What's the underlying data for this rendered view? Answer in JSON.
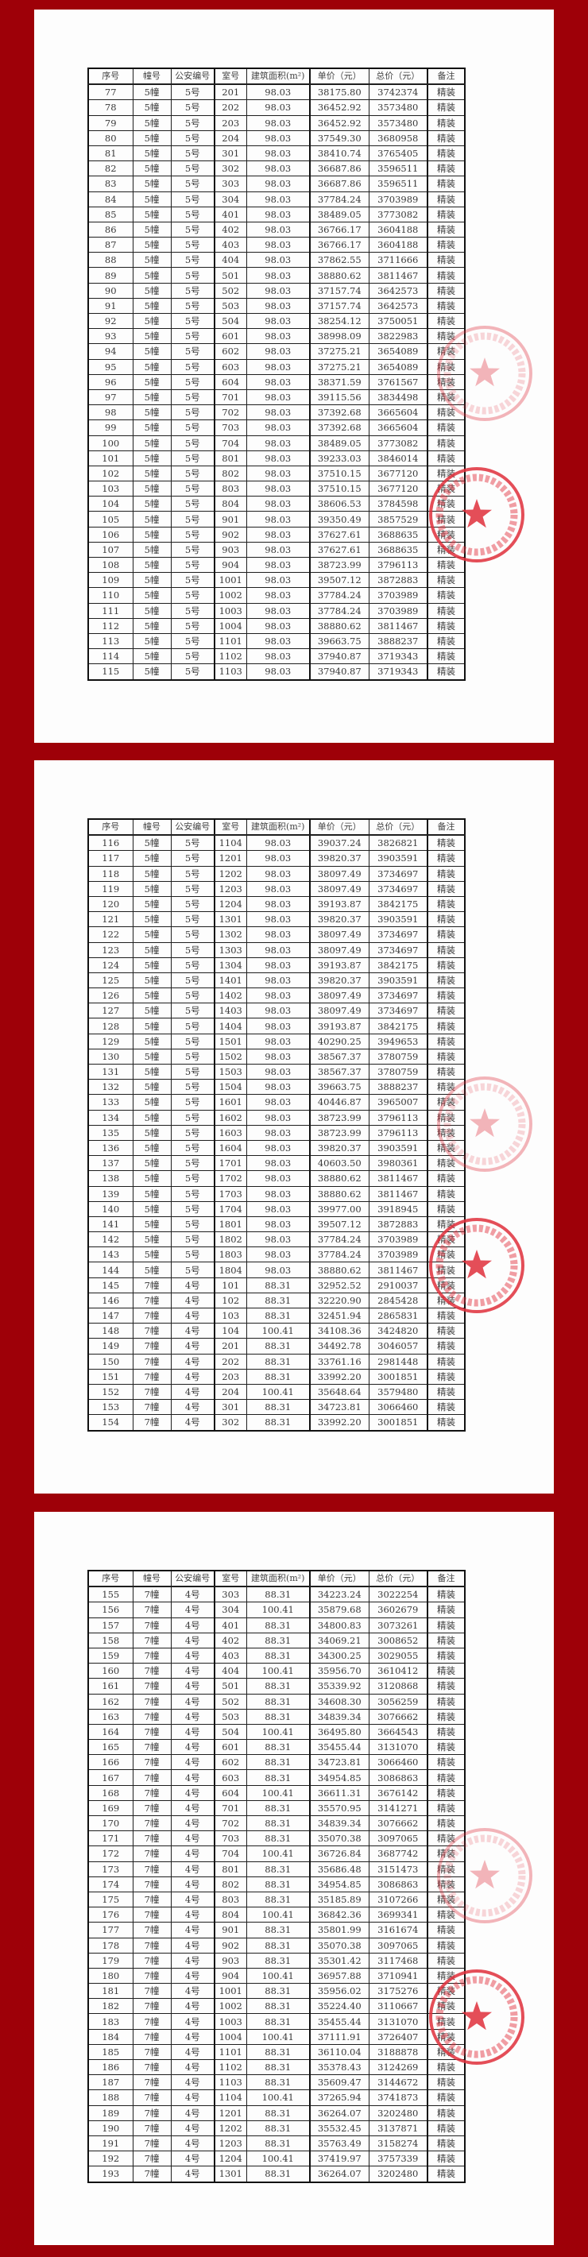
{
  "colors": {
    "background": "#9e0008",
    "paper": "#fdfdfd",
    "seal": "#e0303c"
  },
  "headers": [
    "序号",
    "幢号",
    "公安编号",
    "室号",
    "建筑面积(m²)",
    "单价（元）",
    "总价（元）",
    "备注"
  ],
  "pages": [
    {
      "rows": [
        [
          "77",
          "5幢",
          "5号",
          "201",
          "98.03",
          "38175.80",
          "3742374",
          "精装"
        ],
        [
          "78",
          "5幢",
          "5号",
          "202",
          "98.03",
          "36452.92",
          "3573480",
          "精装"
        ],
        [
          "79",
          "5幢",
          "5号",
          "203",
          "98.03",
          "36452.92",
          "3573480",
          "精装"
        ],
        [
          "80",
          "5幢",
          "5号",
          "204",
          "98.03",
          "37549.30",
          "3680958",
          "精装"
        ],
        [
          "81",
          "5幢",
          "5号",
          "301",
          "98.03",
          "38410.74",
          "3765405",
          "精装"
        ],
        [
          "82",
          "5幢",
          "5号",
          "302",
          "98.03",
          "36687.86",
          "3596511",
          "精装"
        ],
        [
          "83",
          "5幢",
          "5号",
          "303",
          "98.03",
          "36687.86",
          "3596511",
          "精装"
        ],
        [
          "84",
          "5幢",
          "5号",
          "304",
          "98.03",
          "37784.24",
          "3703989",
          "精装"
        ],
        [
          "85",
          "5幢",
          "5号",
          "401",
          "98.03",
          "38489.05",
          "3773082",
          "精装"
        ],
        [
          "86",
          "5幢",
          "5号",
          "402",
          "98.03",
          "36766.17",
          "3604188",
          "精装"
        ],
        [
          "87",
          "5幢",
          "5号",
          "403",
          "98.03",
          "36766.17",
          "3604188",
          "精装"
        ],
        [
          "88",
          "5幢",
          "5号",
          "404",
          "98.03",
          "37862.55",
          "3711666",
          "精装"
        ],
        [
          "89",
          "5幢",
          "5号",
          "501",
          "98.03",
          "38880.62",
          "3811467",
          "精装"
        ],
        [
          "90",
          "5幢",
          "5号",
          "502",
          "98.03",
          "37157.74",
          "3642573",
          "精装"
        ],
        [
          "91",
          "5幢",
          "5号",
          "503",
          "98.03",
          "37157.74",
          "3642573",
          "精装"
        ],
        [
          "92",
          "5幢",
          "5号",
          "504",
          "98.03",
          "38254.12",
          "3750051",
          "精装"
        ],
        [
          "93",
          "5幢",
          "5号",
          "601",
          "98.03",
          "38998.09",
          "3822983",
          "精装"
        ],
        [
          "94",
          "5幢",
          "5号",
          "602",
          "98.03",
          "37275.21",
          "3654089",
          "精装"
        ],
        [
          "95",
          "5幢",
          "5号",
          "603",
          "98.03",
          "37275.21",
          "3654089",
          "精装"
        ],
        [
          "96",
          "5幢",
          "5号",
          "604",
          "98.03",
          "38371.59",
          "3761567",
          "精装"
        ],
        [
          "97",
          "5幢",
          "5号",
          "701",
          "98.03",
          "39115.56",
          "3834498",
          "精装"
        ],
        [
          "98",
          "5幢",
          "5号",
          "702",
          "98.03",
          "37392.68",
          "3665604",
          "精装"
        ],
        [
          "99",
          "5幢",
          "5号",
          "703",
          "98.03",
          "37392.68",
          "3665604",
          "精装"
        ],
        [
          "100",
          "5幢",
          "5号",
          "704",
          "98.03",
          "38489.05",
          "3773082",
          "精装"
        ],
        [
          "101",
          "5幢",
          "5号",
          "801",
          "98.03",
          "39233.03",
          "3846014",
          "精装"
        ],
        [
          "102",
          "5幢",
          "5号",
          "802",
          "98.03",
          "37510.15",
          "3677120",
          "精装"
        ],
        [
          "103",
          "5幢",
          "5号",
          "803",
          "98.03",
          "37510.15",
          "3677120",
          "精装"
        ],
        [
          "104",
          "5幢",
          "5号",
          "804",
          "98.03",
          "38606.53",
          "3784598",
          "精装"
        ],
        [
          "105",
          "5幢",
          "5号",
          "901",
          "98.03",
          "39350.49",
          "3857529",
          "精装"
        ],
        [
          "106",
          "5幢",
          "5号",
          "902",
          "98.03",
          "37627.61",
          "3688635",
          "精装"
        ],
        [
          "107",
          "5幢",
          "5号",
          "903",
          "98.03",
          "37627.61",
          "3688635",
          "精装"
        ],
        [
          "108",
          "5幢",
          "5号",
          "904",
          "98.03",
          "38723.99",
          "3796113",
          "精装"
        ],
        [
          "109",
          "5幢",
          "5号",
          "1001",
          "98.03",
          "39507.12",
          "3872883",
          "精装"
        ],
        [
          "110",
          "5幢",
          "5号",
          "1002",
          "98.03",
          "37784.24",
          "3703989",
          "精装"
        ],
        [
          "111",
          "5幢",
          "5号",
          "1003",
          "98.03",
          "37784.24",
          "3703989",
          "精装"
        ],
        [
          "112",
          "5幢",
          "5号",
          "1004",
          "98.03",
          "38880.62",
          "3811467",
          "精装"
        ],
        [
          "113",
          "5幢",
          "5号",
          "1101",
          "98.03",
          "39663.75",
          "3888237",
          "精装"
        ],
        [
          "114",
          "5幢",
          "5号",
          "1102",
          "98.03",
          "37940.87",
          "3719343",
          "精装"
        ],
        [
          "115",
          "5幢",
          "5号",
          "1103",
          "98.03",
          "37940.87",
          "3719343",
          "精装"
        ]
      ]
    },
    {
      "rows": [
        [
          "116",
          "5幢",
          "5号",
          "1104",
          "98.03",
          "39037.24",
          "3826821",
          "精装"
        ],
        [
          "117",
          "5幢",
          "5号",
          "1201",
          "98.03",
          "39820.37",
          "3903591",
          "精装"
        ],
        [
          "118",
          "5幢",
          "5号",
          "1202",
          "98.03",
          "38097.49",
          "3734697",
          "精装"
        ],
        [
          "119",
          "5幢",
          "5号",
          "1203",
          "98.03",
          "38097.49",
          "3734697",
          "精装"
        ],
        [
          "120",
          "5幢",
          "5号",
          "1204",
          "98.03",
          "39193.87",
          "3842175",
          "精装"
        ],
        [
          "121",
          "5幢",
          "5号",
          "1301",
          "98.03",
          "39820.37",
          "3903591",
          "精装"
        ],
        [
          "122",
          "5幢",
          "5号",
          "1302",
          "98.03",
          "38097.49",
          "3734697",
          "精装"
        ],
        [
          "123",
          "5幢",
          "5号",
          "1303",
          "98.03",
          "38097.49",
          "3734697",
          "精装"
        ],
        [
          "124",
          "5幢",
          "5号",
          "1304",
          "98.03",
          "39193.87",
          "3842175",
          "精装"
        ],
        [
          "125",
          "5幢",
          "5号",
          "1401",
          "98.03",
          "39820.37",
          "3903591",
          "精装"
        ],
        [
          "126",
          "5幢",
          "5号",
          "1402",
          "98.03",
          "38097.49",
          "3734697",
          "精装"
        ],
        [
          "127",
          "5幢",
          "5号",
          "1403",
          "98.03",
          "38097.49",
          "3734697",
          "精装"
        ],
        [
          "128",
          "5幢",
          "5号",
          "1404",
          "98.03",
          "39193.87",
          "3842175",
          "精装"
        ],
        [
          "129",
          "5幢",
          "5号",
          "1501",
          "98.03",
          "40290.25",
          "3949653",
          "精装"
        ],
        [
          "130",
          "5幢",
          "5号",
          "1502",
          "98.03",
          "38567.37",
          "3780759",
          "精装"
        ],
        [
          "131",
          "5幢",
          "5号",
          "1503",
          "98.03",
          "38567.37",
          "3780759",
          "精装"
        ],
        [
          "132",
          "5幢",
          "5号",
          "1504",
          "98.03",
          "39663.75",
          "3888237",
          "精装"
        ],
        [
          "133",
          "5幢",
          "5号",
          "1601",
          "98.03",
          "40446.87",
          "3965007",
          "精装"
        ],
        [
          "134",
          "5幢",
          "5号",
          "1602",
          "98.03",
          "38723.99",
          "3796113",
          "精装"
        ],
        [
          "135",
          "5幢",
          "5号",
          "1603",
          "98.03",
          "38723.99",
          "3796113",
          "精装"
        ],
        [
          "136",
          "5幢",
          "5号",
          "1604",
          "98.03",
          "39820.37",
          "3903591",
          "精装"
        ],
        [
          "137",
          "5幢",
          "5号",
          "1701",
          "98.03",
          "40603.50",
          "3980361",
          "精装"
        ],
        [
          "138",
          "5幢",
          "5号",
          "1702",
          "98.03",
          "38880.62",
          "3811467",
          "精装"
        ],
        [
          "139",
          "5幢",
          "5号",
          "1703",
          "98.03",
          "38880.62",
          "3811467",
          "精装"
        ],
        [
          "140",
          "5幢",
          "5号",
          "1704",
          "98.03",
          "39977.00",
          "3918945",
          "精装"
        ],
        [
          "141",
          "5幢",
          "5号",
          "1801",
          "98.03",
          "39507.12",
          "3872883",
          "精装"
        ],
        [
          "142",
          "5幢",
          "5号",
          "1802",
          "98.03",
          "37784.24",
          "3703989",
          "精装"
        ],
        [
          "143",
          "5幢",
          "5号",
          "1803",
          "98.03",
          "37784.24",
          "3703989",
          "精装"
        ],
        [
          "144",
          "5幢",
          "5号",
          "1804",
          "98.03",
          "38880.62",
          "3811467",
          "精装"
        ],
        [
          "145",
          "7幢",
          "4号",
          "101",
          "88.31",
          "32952.52",
          "2910037",
          "精装"
        ],
        [
          "146",
          "7幢",
          "4号",
          "102",
          "88.31",
          "32220.90",
          "2845428",
          "精装"
        ],
        [
          "147",
          "7幢",
          "4号",
          "103",
          "88.31",
          "32451.94",
          "2865831",
          "精装"
        ],
        [
          "148",
          "7幢",
          "4号",
          "104",
          "100.41",
          "34108.36",
          "3424820",
          "精装"
        ],
        [
          "149",
          "7幢",
          "4号",
          "201",
          "88.31",
          "34492.78",
          "3046057",
          "精装"
        ],
        [
          "150",
          "7幢",
          "4号",
          "202",
          "88.31",
          "33761.16",
          "2981448",
          "精装"
        ],
        [
          "151",
          "7幢",
          "4号",
          "203",
          "88.31",
          "33992.20",
          "3001851",
          "精装"
        ],
        [
          "152",
          "7幢",
          "4号",
          "204",
          "100.41",
          "35648.64",
          "3579480",
          "精装"
        ],
        [
          "153",
          "7幢",
          "4号",
          "301",
          "88.31",
          "34723.81",
          "3066460",
          "精装"
        ],
        [
          "154",
          "7幢",
          "4号",
          "302",
          "88.31",
          "33992.20",
          "3001851",
          "精装"
        ]
      ]
    },
    {
      "rows": [
        [
          "155",
          "7幢",
          "4号",
          "303",
          "88.31",
          "34223.24",
          "3022254",
          "精装"
        ],
        [
          "156",
          "7幢",
          "4号",
          "304",
          "100.41",
          "35879.68",
          "3602679",
          "精装"
        ],
        [
          "157",
          "7幢",
          "4号",
          "401",
          "88.31",
          "34800.83",
          "3073261",
          "精装"
        ],
        [
          "158",
          "7幢",
          "4号",
          "402",
          "88.31",
          "34069.21",
          "3008652",
          "精装"
        ],
        [
          "159",
          "7幢",
          "4号",
          "403",
          "88.31",
          "34300.25",
          "3029055",
          "精装"
        ],
        [
          "160",
          "7幢",
          "4号",
          "404",
          "100.41",
          "35956.70",
          "3610412",
          "精装"
        ],
        [
          "161",
          "7幢",
          "4号",
          "501",
          "88.31",
          "35339.92",
          "3120868",
          "精装"
        ],
        [
          "162",
          "7幢",
          "4号",
          "502",
          "88.31",
          "34608.30",
          "3056259",
          "精装"
        ],
        [
          "163",
          "7幢",
          "4号",
          "503",
          "88.31",
          "34839.34",
          "3076662",
          "精装"
        ],
        [
          "164",
          "7幢",
          "4号",
          "504",
          "100.41",
          "36495.80",
          "3664543",
          "精装"
        ],
        [
          "165",
          "7幢",
          "4号",
          "601",
          "88.31",
          "35455.44",
          "3131070",
          "精装"
        ],
        [
          "166",
          "7幢",
          "4号",
          "602",
          "88.31",
          "34723.81",
          "3066460",
          "精装"
        ],
        [
          "167",
          "7幢",
          "4号",
          "603",
          "88.31",
          "34954.85",
          "3086863",
          "精装"
        ],
        [
          "168",
          "7幢",
          "4号",
          "604",
          "100.41",
          "36611.31",
          "3676142",
          "精装"
        ],
        [
          "169",
          "7幢",
          "4号",
          "701",
          "88.31",
          "35570.95",
          "3141271",
          "精装"
        ],
        [
          "170",
          "7幢",
          "4号",
          "702",
          "88.31",
          "34839.34",
          "3076662",
          "精装"
        ],
        [
          "171",
          "7幢",
          "4号",
          "703",
          "88.31",
          "35070.38",
          "3097065",
          "精装"
        ],
        [
          "172",
          "7幢",
          "4号",
          "704",
          "100.41",
          "36726.84",
          "3687742",
          "精装"
        ],
        [
          "173",
          "7幢",
          "4号",
          "801",
          "88.31",
          "35686.48",
          "3151473",
          "精装"
        ],
        [
          "174",
          "7幢",
          "4号",
          "802",
          "88.31",
          "34954.85",
          "3086863",
          "精装"
        ],
        [
          "175",
          "7幢",
          "4号",
          "803",
          "88.31",
          "35185.89",
          "3107266",
          "精装"
        ],
        [
          "176",
          "7幢",
          "4号",
          "804",
          "100.41",
          "36842.36",
          "3699341",
          "精装"
        ],
        [
          "177",
          "7幢",
          "4号",
          "901",
          "88.31",
          "35801.99",
          "3161674",
          "精装"
        ],
        [
          "178",
          "7幢",
          "4号",
          "902",
          "88.31",
          "35070.38",
          "3097065",
          "精装"
        ],
        [
          "179",
          "7幢",
          "4号",
          "903",
          "88.31",
          "35301.42",
          "3117468",
          "精装"
        ],
        [
          "180",
          "7幢",
          "4号",
          "904",
          "100.41",
          "36957.88",
          "3710941",
          "精装"
        ],
        [
          "181",
          "7幢",
          "4号",
          "1001",
          "88.31",
          "35956.02",
          "3175276",
          "精装"
        ],
        [
          "182",
          "7幢",
          "4号",
          "1002",
          "88.31",
          "35224.40",
          "3110667",
          "精装"
        ],
        [
          "183",
          "7幢",
          "4号",
          "1003",
          "88.31",
          "35455.44",
          "3131070",
          "精装"
        ],
        [
          "184",
          "7幢",
          "4号",
          "1004",
          "100.41",
          "37111.91",
          "3726407",
          "精装"
        ],
        [
          "185",
          "7幢",
          "4号",
          "1101",
          "88.31",
          "36110.04",
          "3188878",
          "精装"
        ],
        [
          "186",
          "7幢",
          "4号",
          "1102",
          "88.31",
          "35378.43",
          "3124269",
          "精装"
        ],
        [
          "187",
          "7幢",
          "4号",
          "1103",
          "88.31",
          "35609.47",
          "3144672",
          "精装"
        ],
        [
          "188",
          "7幢",
          "4号",
          "1104",
          "100.41",
          "37265.94",
          "3741873",
          "精装"
        ],
        [
          "189",
          "7幢",
          "4号",
          "1201",
          "88.31",
          "36264.07",
          "3202480",
          "精装"
        ],
        [
          "190",
          "7幢",
          "4号",
          "1202",
          "88.31",
          "35532.45",
          "3137871",
          "精装"
        ],
        [
          "191",
          "7幢",
          "4号",
          "1203",
          "88.31",
          "35763.49",
          "3158274",
          "精装"
        ],
        [
          "192",
          "7幢",
          "4号",
          "1204",
          "100.41",
          "37419.97",
          "3757339",
          "精装"
        ],
        [
          "193",
          "7幢",
          "4号",
          "1301",
          "88.31",
          "36264.07",
          "3202480",
          "精装"
        ]
      ]
    }
  ]
}
